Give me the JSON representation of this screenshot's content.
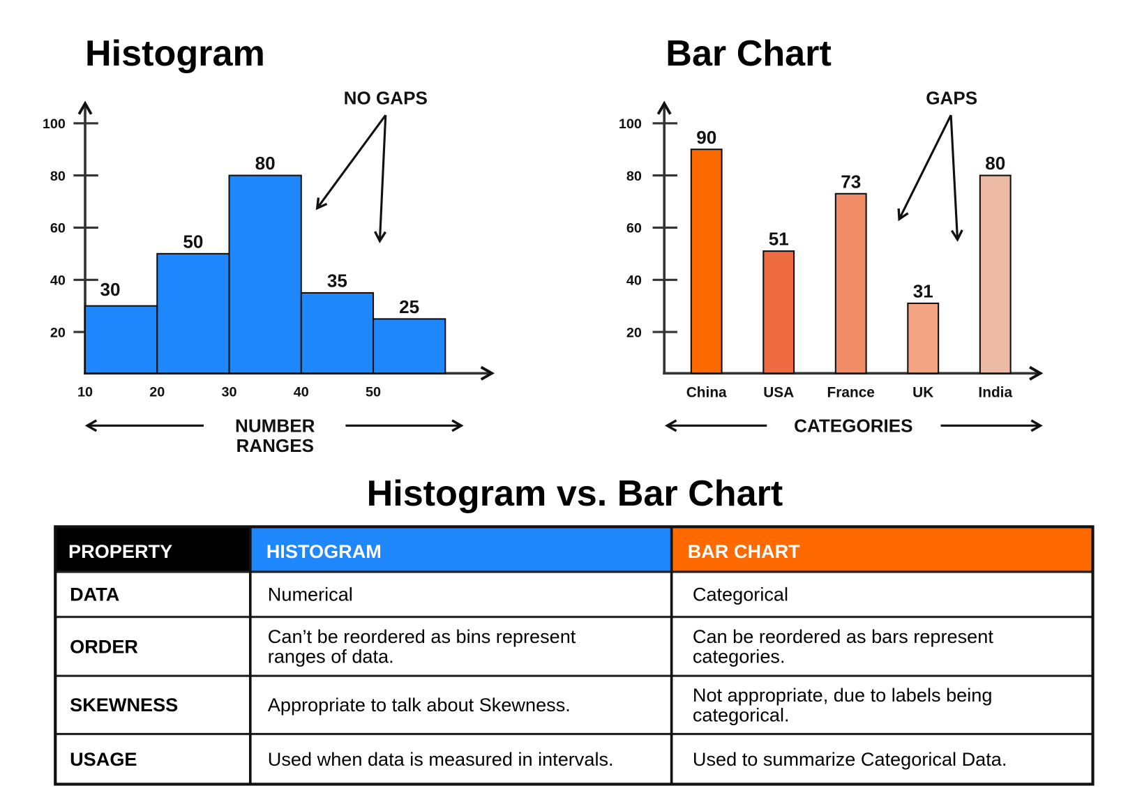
{
  "histogram": {
    "title": "Histogram",
    "annotation": "NO GAPS",
    "axis_label_lines": [
      "NUMBER",
      "RANGES"
    ],
    "label_color": "#1f87fc"
  },
  "barchart": {
    "title": "Bar Chart",
    "annotation": "GAPS",
    "axis_label": "CATEGORIES",
    "label_color": "#ff6a13"
  },
  "chart_data": [
    {
      "type": "bar",
      "title": "Histogram",
      "bins": [
        [
          10,
          20
        ],
        [
          20,
          30
        ],
        [
          30,
          40
        ],
        [
          40,
          50
        ],
        [
          50,
          60
        ]
      ],
      "values": [
        30,
        50,
        80,
        35,
        25
      ],
      "x_tick_labels": [
        "10",
        "20",
        "30",
        "40",
        "50"
      ],
      "y_tick_labels": [
        "20",
        "40",
        "60",
        "80",
        "100"
      ],
      "ylim": [
        0,
        100
      ],
      "xlabel": "NUMBER RANGES",
      "color": "#1f87fc",
      "grid": false
    },
    {
      "type": "bar",
      "title": "Bar Chart",
      "categories": [
        "China",
        "USA",
        "France",
        "UK",
        "India"
      ],
      "values": [
        90,
        51,
        73,
        31,
        80
      ],
      "colors": [
        "#ff6a00",
        "#ef6c43",
        "#f28c67",
        "#f3a583",
        "#edbba4"
      ],
      "y_tick_labels": [
        "20",
        "40",
        "60",
        "80",
        "100"
      ],
      "ylim": [
        0,
        100
      ],
      "xlabel": "CATEGORIES",
      "grid": false
    }
  ],
  "comparison": {
    "title": "Histogram vs. Bar Chart",
    "headers": [
      "PROPERTY",
      "HISTOGRAM",
      "BAR CHART"
    ],
    "header_colors": [
      "#000000",
      "#1f87fc",
      "#ff6a00"
    ],
    "rows": [
      {
        "property": "DATA",
        "histogram": [
          "Numerical"
        ],
        "bar_chart": [
          "Categorical"
        ]
      },
      {
        "property": "ORDER",
        "histogram": [
          "Can’t be reordered as bins represent",
          "ranges of data."
        ],
        "bar_chart": [
          "Can be reordered as bars represent",
          "categories."
        ]
      },
      {
        "property": "SKEWNESS",
        "histogram": [
          "Appropriate to talk about Skewness."
        ],
        "bar_chart": [
          "Not appropriate, due to labels being",
          "categorical."
        ]
      },
      {
        "property": "USAGE",
        "histogram": [
          "Used when data is measured in intervals."
        ],
        "bar_chart": [
          "Used to summarize Categorical Data."
        ]
      }
    ]
  }
}
